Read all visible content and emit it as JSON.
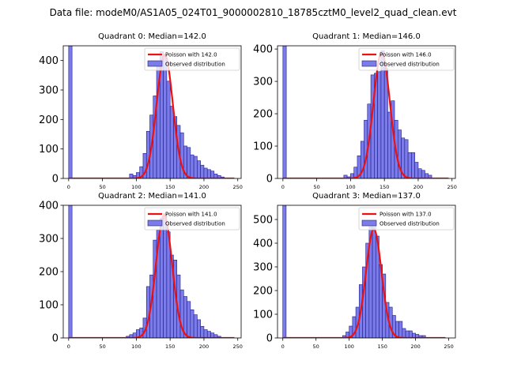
{
  "suptitle": "Data file: modeM0/AS1A05_024T01_9000002810_18785cztM0_level2_quad_clean.evt",
  "colors": {
    "bar_fill": "#7b7bea",
    "bar_edge": "#1c1c8a",
    "poisson": "#ee1111"
  },
  "legend": {
    "observed_label": "Observed distribution"
  },
  "chart_data": [
    {
      "type": "bar",
      "title": "Quadrant 0: Median=142.0",
      "median": 142.0,
      "poisson_label": "Poisson with 142.0",
      "xlim": [
        -8,
        255
      ],
      "ylim": [
        0,
        450
      ],
      "xticks": [
        0,
        50,
        100,
        150,
        200,
        250
      ],
      "yticks": [
        0,
        100,
        200,
        300,
        400
      ],
      "bin_width": 5,
      "bins": [
        [
          0,
          450
        ],
        [
          90,
          15
        ],
        [
          95,
          10
        ],
        [
          100,
          20
        ],
        [
          105,
          40
        ],
        [
          110,
          85
        ],
        [
          115,
          160
        ],
        [
          120,
          215
        ],
        [
          125,
          280
        ],
        [
          130,
          385
        ],
        [
          135,
          430
        ],
        [
          140,
          420
        ],
        [
          145,
          330
        ],
        [
          150,
          245
        ],
        [
          155,
          210
        ],
        [
          160,
          180
        ],
        [
          165,
          155
        ],
        [
          170,
          110
        ],
        [
          175,
          105
        ],
        [
          180,
          80
        ],
        [
          185,
          75
        ],
        [
          190,
          60
        ],
        [
          195,
          45
        ],
        [
          200,
          35
        ],
        [
          205,
          30
        ],
        [
          210,
          25
        ],
        [
          215,
          15
        ],
        [
          220,
          10
        ],
        [
          225,
          5
        ]
      ],
      "poisson_peak": 420
    },
    {
      "type": "bar",
      "title": "Quadrant 1: Median=146.0",
      "median": 146.0,
      "poisson_label": "Poisson with 146.0",
      "xlim": [
        -8,
        255
      ],
      "ylim": [
        0,
        410
      ],
      "xticks": [
        0,
        50,
        100,
        150,
        200,
        250
      ],
      "yticks": [
        0,
        100,
        200,
        300,
        400
      ],
      "bin_width": 5,
      "bins": [
        [
          0,
          410
        ],
        [
          90,
          10
        ],
        [
          95,
          5
        ],
        [
          100,
          15
        ],
        [
          105,
          35
        ],
        [
          110,
          70
        ],
        [
          115,
          115
        ],
        [
          120,
          180
        ],
        [
          125,
          230
        ],
        [
          130,
          320
        ],
        [
          135,
          325
        ],
        [
          140,
          330
        ],
        [
          145,
          395
        ],
        [
          150,
          340
        ],
        [
          155,
          205
        ],
        [
          160,
          240
        ],
        [
          165,
          180
        ],
        [
          170,
          150
        ],
        [
          175,
          125
        ],
        [
          180,
          120
        ],
        [
          185,
          80
        ],
        [
          190,
          80
        ],
        [
          195,
          50
        ],
        [
          200,
          30
        ],
        [
          205,
          25
        ],
        [
          210,
          15
        ],
        [
          215,
          10
        ]
      ],
      "poisson_peak": 390
    },
    {
      "type": "bar",
      "title": "Quadrant 2: Median=141.0",
      "median": 141.0,
      "poisson_label": "Poisson with 141.0",
      "xlim": [
        -8,
        255
      ],
      "ylim": [
        0,
        400
      ],
      "xticks": [
        0,
        50,
        100,
        150,
        200,
        250
      ],
      "yticks": [
        0,
        100,
        200,
        300,
        400
      ],
      "bin_width": 5,
      "bins": [
        [
          0,
          400
        ],
        [
          85,
          5
        ],
        [
          90,
          10
        ],
        [
          95,
          15
        ],
        [
          100,
          25
        ],
        [
          105,
          30
        ],
        [
          110,
          60
        ],
        [
          115,
          155
        ],
        [
          120,
          190
        ],
        [
          125,
          295
        ],
        [
          130,
          325
        ],
        [
          135,
          360
        ],
        [
          140,
          375
        ],
        [
          145,
          320
        ],
        [
          150,
          250
        ],
        [
          155,
          235
        ],
        [
          160,
          190
        ],
        [
          165,
          145
        ],
        [
          170,
          125
        ],
        [
          175,
          110
        ],
        [
          180,
          85
        ],
        [
          185,
          70
        ],
        [
          190,
          55
        ],
        [
          195,
          35
        ],
        [
          200,
          25
        ],
        [
          205,
          20
        ],
        [
          210,
          15
        ],
        [
          215,
          10
        ],
        [
          220,
          5
        ]
      ],
      "poisson_peak": 370
    },
    {
      "type": "bar",
      "title": "Quadrant 3: Median=137.0",
      "median": 137.0,
      "poisson_label": "Poisson with 137.0",
      "xlim": [
        -8,
        260
      ],
      "ylim": [
        0,
        560
      ],
      "xticks": [
        0,
        50,
        100,
        150,
        200,
        250
      ],
      "yticks": [
        0,
        100,
        200,
        300,
        400,
        500
      ],
      "bin_width": 5,
      "bins": [
        [
          0,
          560
        ],
        [
          90,
          10
        ],
        [
          95,
          25
        ],
        [
          100,
          50
        ],
        [
          105,
          90
        ],
        [
          110,
          130
        ],
        [
          115,
          225
        ],
        [
          120,
          300
        ],
        [
          125,
          400
        ],
        [
          130,
          470
        ],
        [
          135,
          475
        ],
        [
          140,
          430
        ],
        [
          145,
          310
        ],
        [
          150,
          270
        ],
        [
          155,
          150
        ],
        [
          160,
          130
        ],
        [
          165,
          95
        ],
        [
          170,
          70
        ],
        [
          175,
          70
        ],
        [
          180,
          40
        ],
        [
          185,
          30
        ],
        [
          190,
          30
        ],
        [
          195,
          20
        ],
        [
          200,
          15
        ],
        [
          205,
          10
        ],
        [
          210,
          10
        ]
      ],
      "poisson_peak": 460
    }
  ]
}
